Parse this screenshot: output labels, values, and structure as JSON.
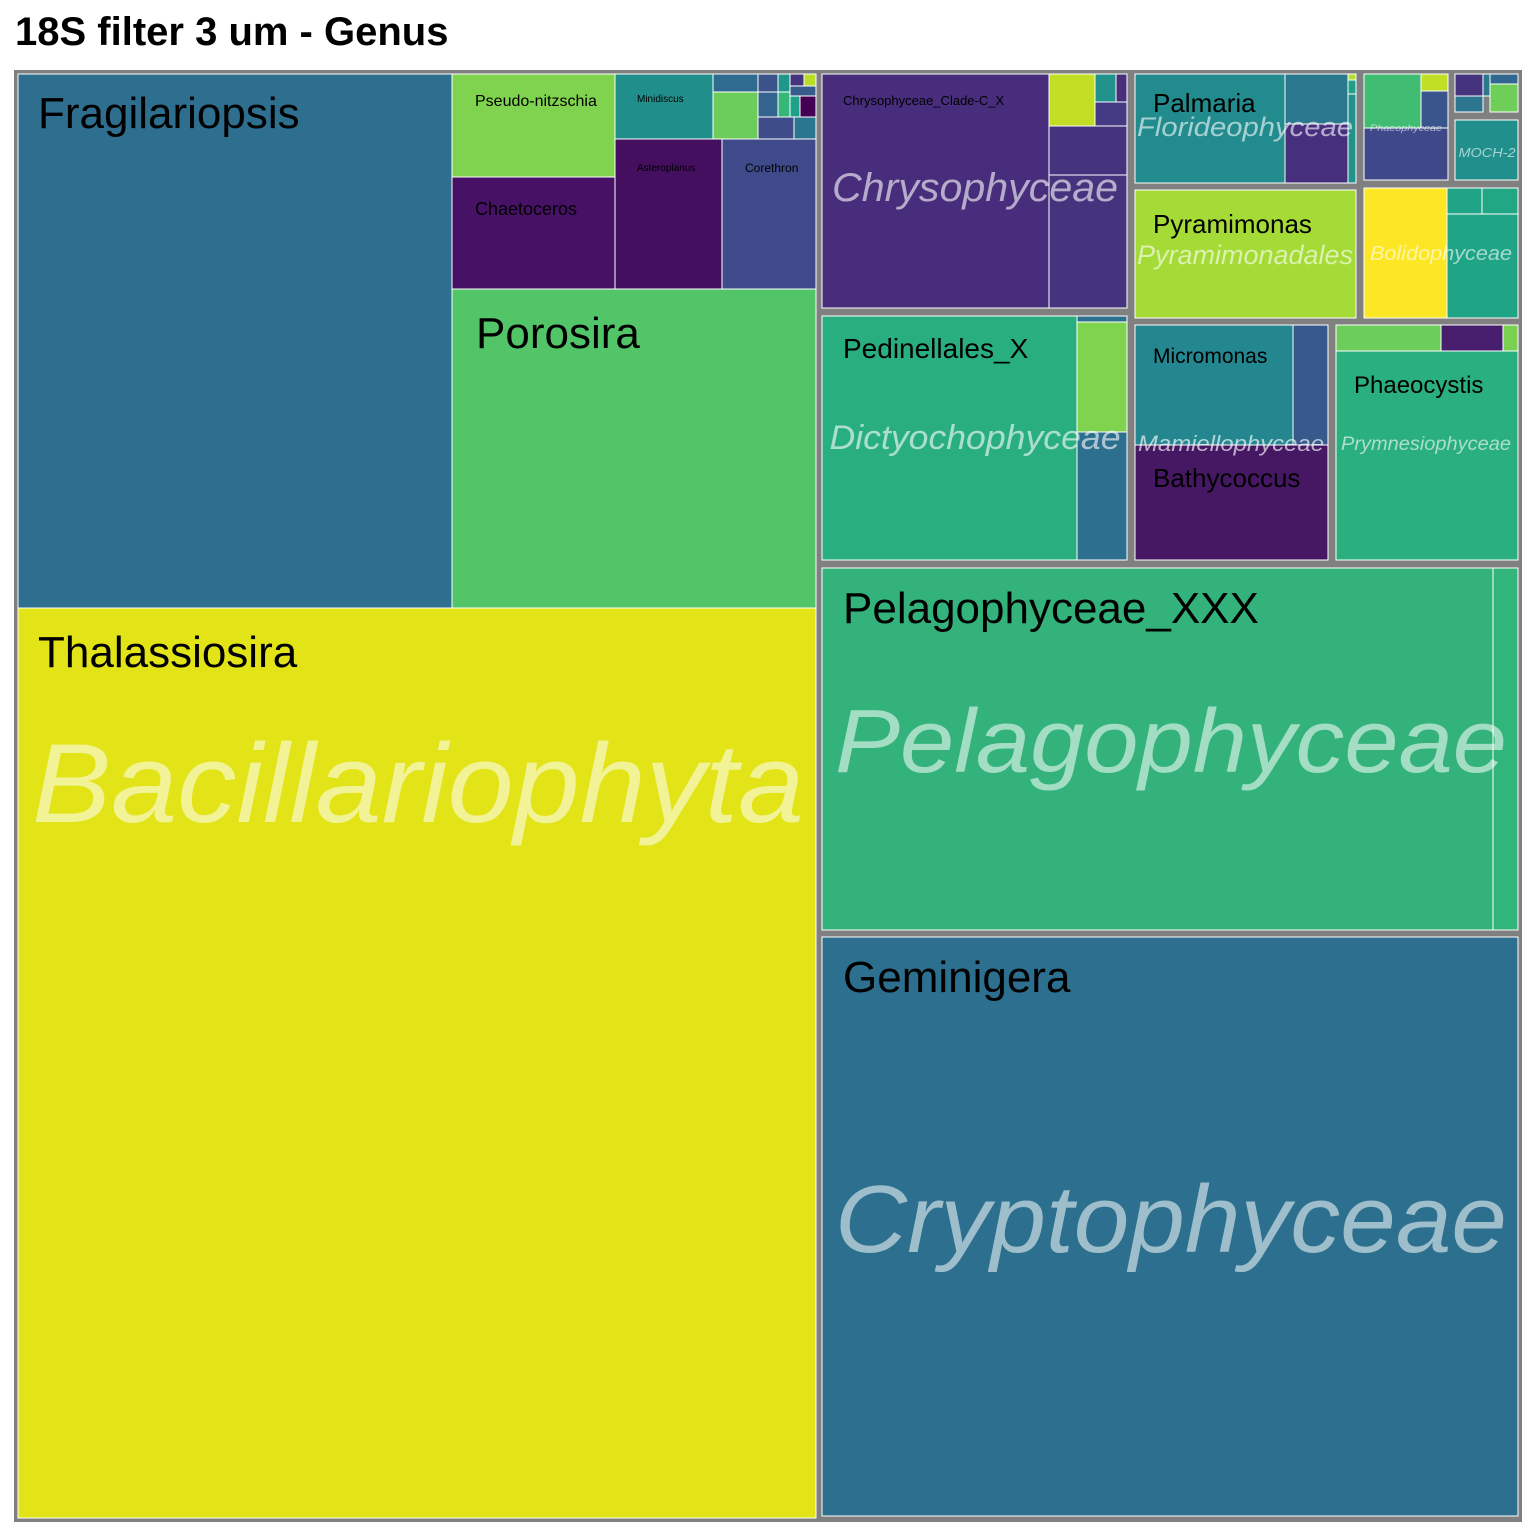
{
  "title": "18S filter 3 um - Genus",
  "chart_data": {
    "type": "treemap",
    "title": "18S filter 3 um - Genus",
    "palette": "viridis",
    "groups": [
      {
        "name": "Bacillariophyta",
        "genera": [
          {
            "name": "Thalassiosira",
            "color": "#e3e418"
          },
          {
            "name": "Fragilariopsis",
            "color": "#2e6e8e"
          },
          {
            "name": "Porosira",
            "color": "#52c569"
          },
          {
            "name": "Pseudo-nitzschia",
            "color": "#80d34e"
          },
          {
            "name": "Chaetoceros",
            "color": "#471265"
          },
          {
            "name": "Minidiscus",
            "color": "#208f8c"
          },
          {
            "name": "Asteroplanus",
            "color": "#450f60"
          },
          {
            "name": "Corethron",
            "color": "#3e4a89"
          }
        ]
      },
      {
        "name": "Cryptophyceae",
        "genera": [
          {
            "name": "Geminigera",
            "color": "#2c6f8e"
          }
        ]
      },
      {
        "name": "Pelagophyceae",
        "genera": [
          {
            "name": "Pelagophyceae_XXX",
            "color": "#33b37b"
          }
        ]
      },
      {
        "name": "Chrysophyceae",
        "genera": [
          {
            "name": "Chrysophyceae_Clade-C_X",
            "color": "#472d7b"
          }
        ]
      },
      {
        "name": "Dictyochophyceae",
        "genera": [
          {
            "name": "Pedinellales_X",
            "color": "#29ae80"
          }
        ]
      },
      {
        "name": "Mamiellophyceae",
        "genera": [
          {
            "name": "Micromonas",
            "color": "#24868e"
          },
          {
            "name": "Bathycoccus",
            "color": "#461863"
          }
        ]
      },
      {
        "name": "Florideophyceae",
        "genera": [
          {
            "name": "Palmaria",
            "color": "#228b8d"
          }
        ]
      },
      {
        "name": "Pyramimonadales",
        "genera": [
          {
            "name": "Pyramimonas",
            "color": "#a5db36"
          }
        ]
      },
      {
        "name": "Prymnesiophyceae",
        "genera": [
          {
            "name": "Phaeocystis",
            "color": "#2aaf7f"
          }
        ]
      },
      {
        "name": "Bolidophyceae",
        "genera": []
      },
      {
        "name": "Phaeophyceae",
        "genera": []
      },
      {
        "name": "MOCH-2",
        "genera": []
      }
    ]
  }
}
